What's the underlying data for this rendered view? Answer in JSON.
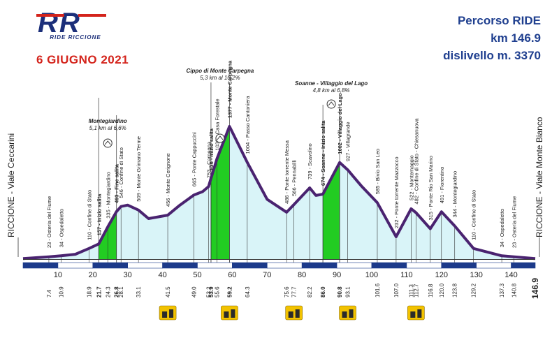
{
  "header": {
    "logo_text": "RR",
    "logo_subtitle": "RIDE RICCIONE",
    "date": "6 GIUGNO 2021",
    "route": "Percorso RIDE",
    "distance": "km 146.9",
    "elevation_gain": "dislivello m. 3370"
  },
  "colors": {
    "profile_line": "#4a2370",
    "profile_fill": "#d9f4f8",
    "climb_fill": "#22cc22",
    "axis_bar": "#1c3a8a",
    "title_blue": "#1f3f8f",
    "date_red": "#d4241c",
    "food_icon": "#f2c200"
  },
  "chart_data": {
    "type": "area",
    "xlabel": "",
    "ylabel": "",
    "xlim": [
      0,
      146.9
    ],
    "xticks": [
      10,
      20,
      30,
      40,
      50,
      60,
      70,
      80,
      90,
      100,
      110,
      120,
      130,
      140
    ],
    "start_label": "RICCIONE - Viale Ceccarini",
    "end_label": "RICCIONE - Viale Monte Bianco",
    "profile": [
      {
        "x": 0,
        "y": 5
      },
      {
        "x": 7.4,
        "y": 23
      },
      {
        "x": 10.9,
        "y": 34
      },
      {
        "x": 15,
        "y": 50
      },
      {
        "x": 18.9,
        "y": 110
      },
      {
        "x": 21.7,
        "y": 157
      },
      {
        "x": 24.3,
        "y": 335
      },
      {
        "x": 26.8,
        "y": 493
      },
      {
        "x": 28.1,
        "y": 546
      },
      {
        "x": 30,
        "y": 560
      },
      {
        "x": 33.1,
        "y": 509
      },
      {
        "x": 36,
        "y": 420
      },
      {
        "x": 41.5,
        "y": 456
      },
      {
        "x": 45,
        "y": 560
      },
      {
        "x": 49.0,
        "y": 665
      },
      {
        "x": 51.5,
        "y": 700
      },
      {
        "x": 53.2,
        "y": 753
      },
      {
        "x": 53.9,
        "y": 836
      },
      {
        "x": 55.6,
        "y": 1039
      },
      {
        "x": 59.2,
        "y": 1377
      },
      {
        "x": 64.3,
        "y": 1004
      },
      {
        "x": 70,
        "y": 620
      },
      {
        "x": 75.6,
        "y": 486
      },
      {
        "x": 77.7,
        "y": 566
      },
      {
        "x": 82.2,
        "y": 739
      },
      {
        "x": 84,
        "y": 660
      },
      {
        "x": 86.0,
        "y": 674
      },
      {
        "x": 90.8,
        "y": 1002
      },
      {
        "x": 93.1,
        "y": 927
      },
      {
        "x": 97,
        "y": 760
      },
      {
        "x": 101.6,
        "y": 585
      },
      {
        "x": 107.0,
        "y": 232
      },
      {
        "x": 111.3,
        "y": 522
      },
      {
        "x": 112.7,
        "y": 482
      },
      {
        "x": 116.8,
        "y": 315
      },
      {
        "x": 120.0,
        "y": 491
      },
      {
        "x": 123.8,
        "y": 344
      },
      {
        "x": 129.2,
        "y": 110
      },
      {
        "x": 137.3,
        "y": 34
      },
      {
        "x": 140.8,
        "y": 23
      },
      {
        "x": 146.9,
        "y": 5
      }
    ],
    "climbs": [
      {
        "name": "Montegiardino",
        "info": "5,1 km al 6,6%",
        "start": 21.7,
        "end": 26.8
      },
      {
        "name": "Cippo di Monte Carpegna",
        "info": "5,3 km al 10,2%",
        "start": 53.9,
        "end": 59.2
      },
      {
        "name": "Soanne - Villaggio del Lago",
        "info": "4,8 km al 6,8%",
        "start": 86.0,
        "end": 90.8
      }
    ],
    "waypoints": [
      {
        "km": "7.4",
        "label": "23 - Osteria del Fiume",
        "x": 7.4,
        "bold": false
      },
      {
        "km": "10.9",
        "label": "34 - Ospedaletto",
        "x": 10.9,
        "bold": false
      },
      {
        "km": "18.9",
        "label": "110 - Confine di Stato",
        "x": 18.9,
        "bold": false
      },
      {
        "km": "21.7",
        "label": "157 - Inizio salita",
        "x": 21.7,
        "bold": true
      },
      {
        "km": "24.3",
        "label": "335 - Montegiardino",
        "x": 24.3,
        "bold": false
      },
      {
        "km": "26.8",
        "label": "493 - Fine salita",
        "x": 26.8,
        "bold": true
      },
      {
        "km": "28.1",
        "label": "546 - Confine di Stato",
        "x": 28.1,
        "bold": false
      },
      {
        "km": "33.1",
        "label": "509 - Monte Grimano Terme",
        "x": 33.1,
        "bold": false
      },
      {
        "km": "41.5",
        "label": "456 - Monte Cerignone",
        "x": 41.5,
        "bold": false
      },
      {
        "km": "49.0",
        "label": "665 - Ponte Cappuccini",
        "x": 49.0,
        "bold": false
      },
      {
        "km": "53.2",
        "label": "753 - Carpegna",
        "x": 53.2,
        "bold": false
      },
      {
        "km": "53.9",
        "label": "836 - Inizio salita",
        "x": 53.9,
        "bold": true
      },
      {
        "km": "55.6",
        "label": "1039 - Casa Forestale",
        "x": 55.6,
        "bold": false
      },
      {
        "km": "59.2",
        "label": "1377 - Monte Carpegna",
        "x": 59.2,
        "bold": true
      },
      {
        "km": "64.3",
        "label": "1004 - Passo Cantoniera",
        "x": 64.3,
        "bold": false
      },
      {
        "km": "75.6",
        "label": "486 - Ponte torrente Messa",
        "x": 75.6,
        "bold": false
      },
      {
        "km": "77.7",
        "label": "566 - Pennabilli",
        "x": 77.7,
        "bold": false
      },
      {
        "km": "82.2",
        "label": "739 - Scavolino",
        "x": 82.2,
        "bold": false
      },
      {
        "km": "86.0",
        "label": "674 - Soanne - Inizio salita",
        "x": 86.0,
        "bold": true
      },
      {
        "km": "90.8",
        "label": "1002 - Villaggio del Lago",
        "x": 90.8,
        "bold": true
      },
      {
        "km": "93.1",
        "label": "927 - Villagrande",
        "x": 93.1,
        "bold": false
      },
      {
        "km": "101.6",
        "label": "585 - Bivio San Leo",
        "x": 101.6,
        "bold": false
      },
      {
        "km": "107.0",
        "label": "232 - Ponte torrente Mazzocco",
        "x": 107.0,
        "bold": false
      },
      {
        "km": "111.3",
        "label": "522 - Montemaggio",
        "x": 111.3,
        "bold": false
      },
      {
        "km": "112.7",
        "label": "482 - Confine di Stato - Chiesanuova",
        "x": 112.7,
        "bold": false
      },
      {
        "km": "116.8",
        "label": "315 - Ponte Rio San Marino",
        "x": 116.8,
        "bold": false
      },
      {
        "km": "120.0",
        "label": "491 - Fiorentino",
        "x": 120.0,
        "bold": false
      },
      {
        "km": "123.8",
        "label": "344 - Montegiardino",
        "x": 123.8,
        "bold": false
      },
      {
        "km": "129.2",
        "label": "110 - Confine di Stato",
        "x": 129.2,
        "bold": false
      },
      {
        "km": "137.3",
        "label": "34 - Ospedaletto",
        "x": 137.3,
        "bold": false
      },
      {
        "km": "140.8",
        "label": "23 - Osteria del Fiume",
        "x": 140.8,
        "bold": false
      }
    ],
    "final_km": "146.9",
    "food_stops": [
      41.5,
      59.2,
      77.7,
      93.1,
      112.7
    ]
  }
}
